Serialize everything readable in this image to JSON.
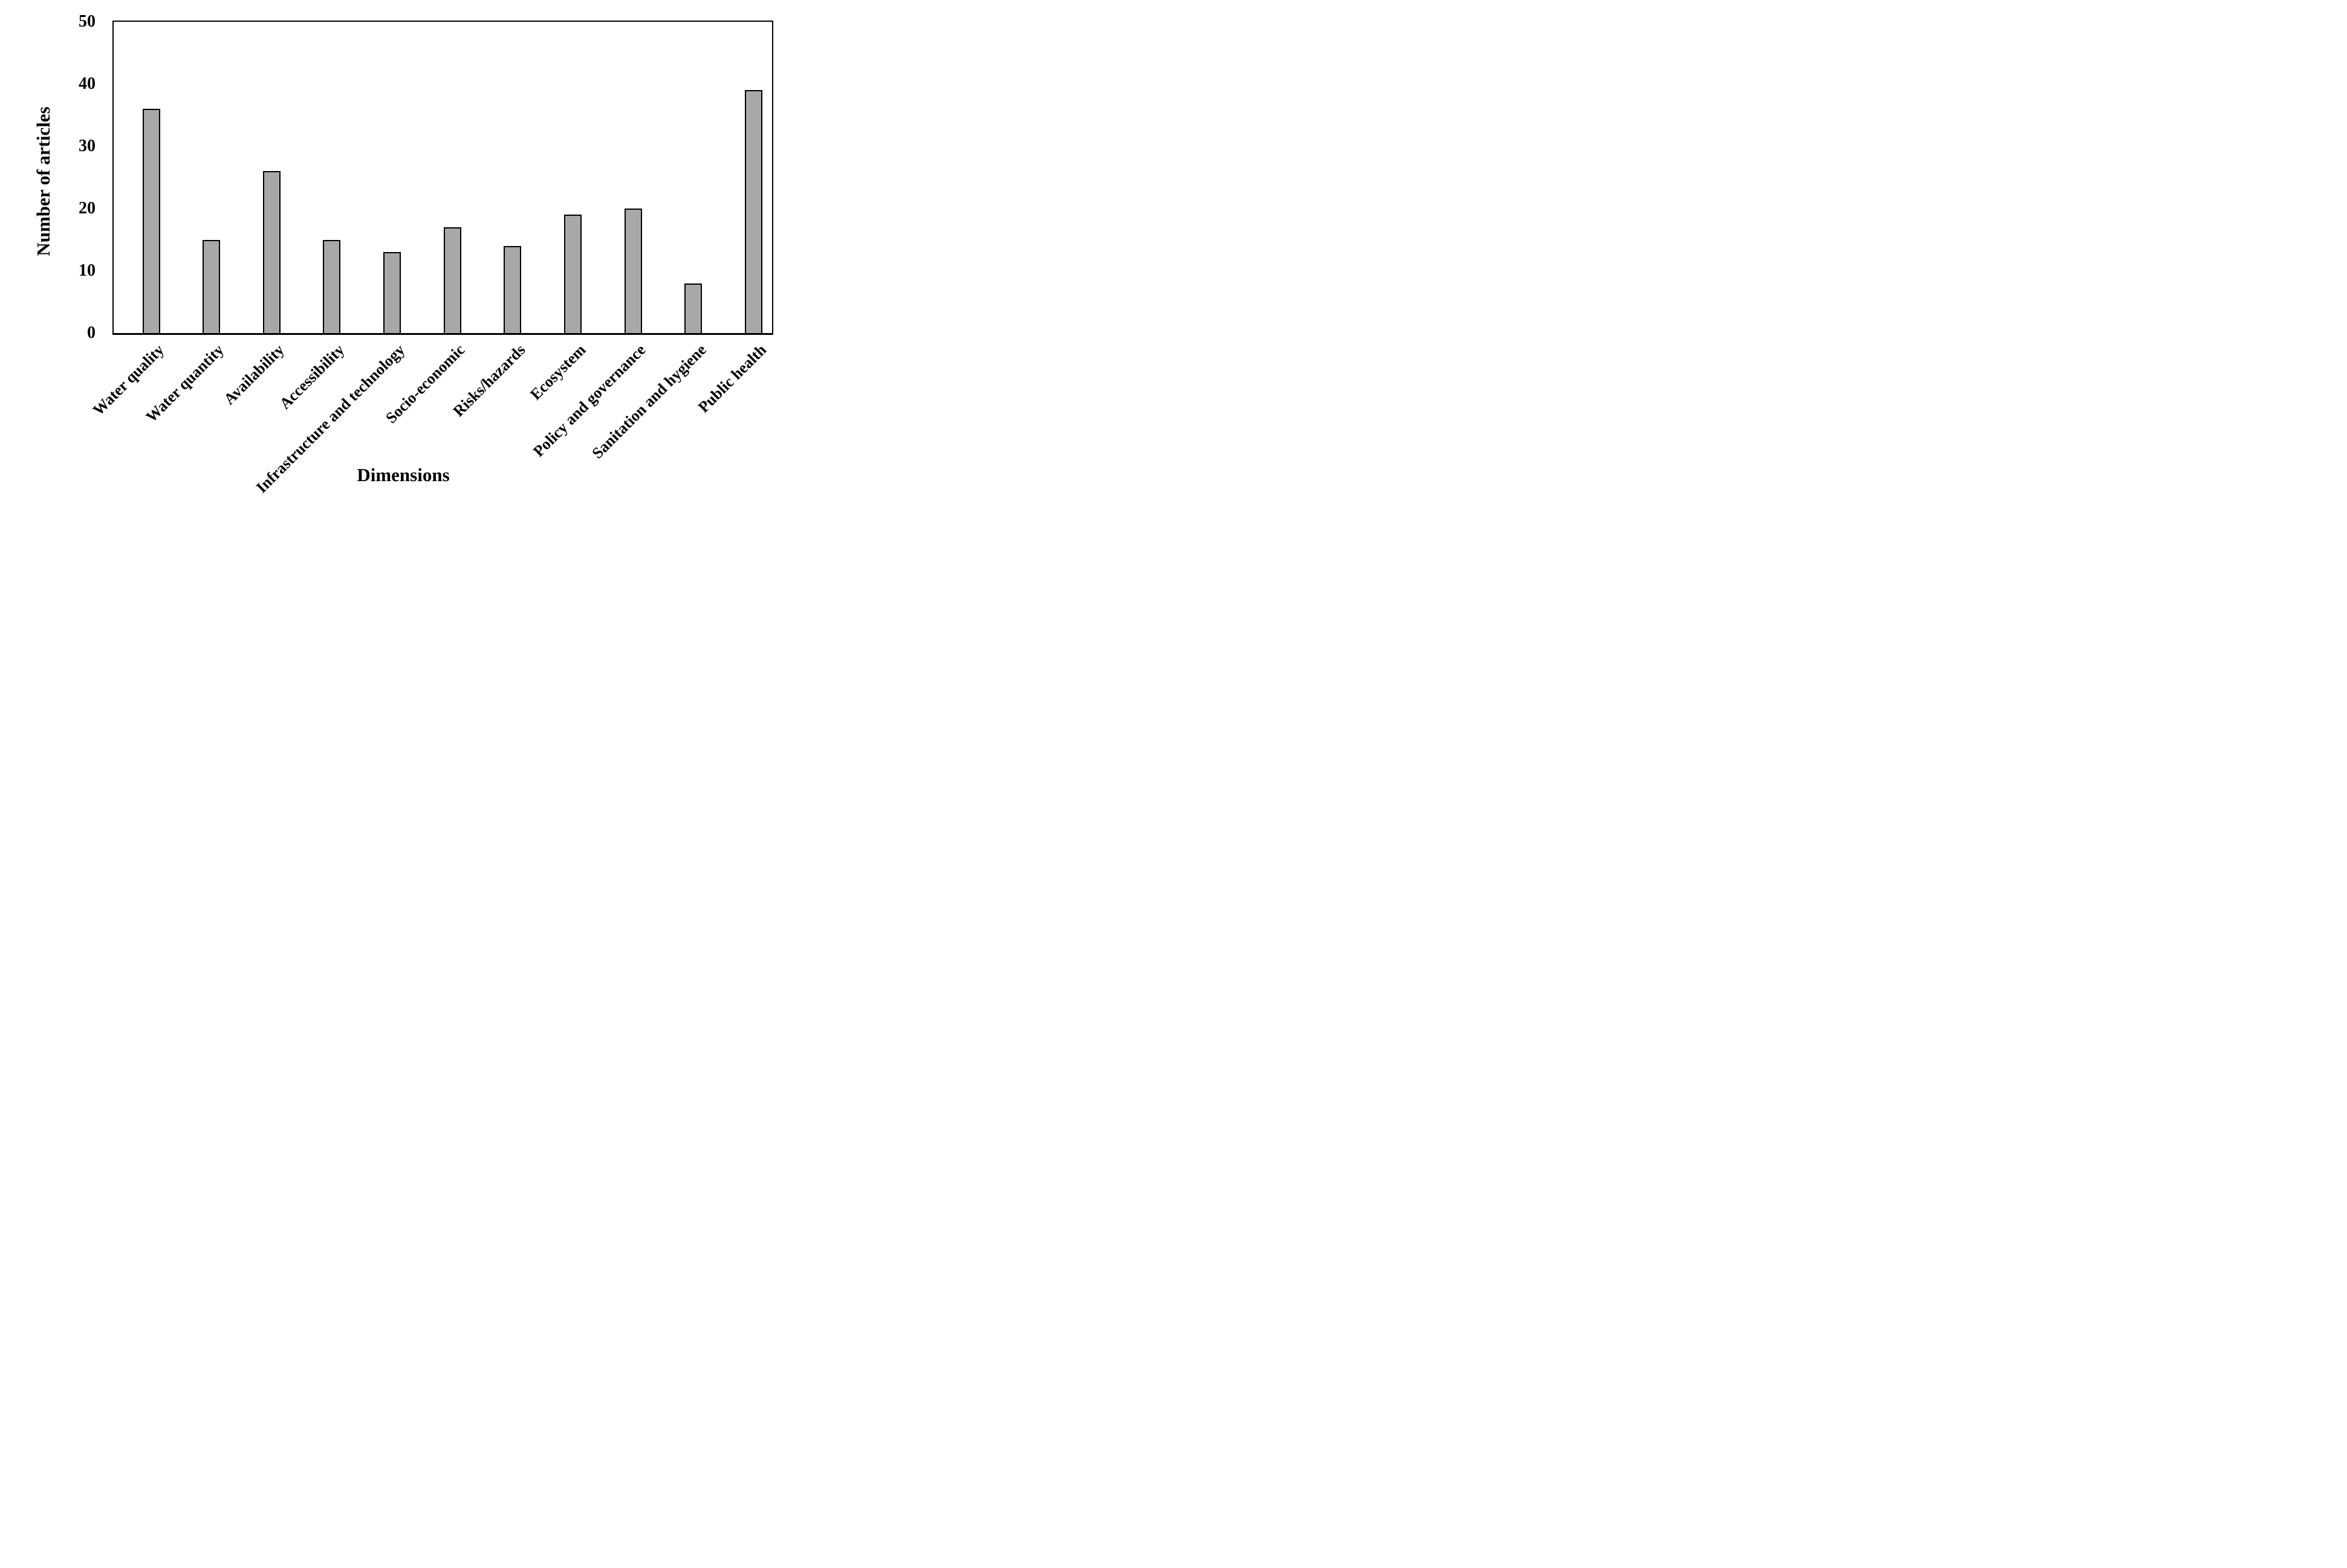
{
  "chart_data": {
    "type": "bar",
    "title": "",
    "xlabel": "Dimensions",
    "ylabel": "Number of articles",
    "categories": [
      "Water quality",
      "Water quantity",
      "Availability",
      "Accessibility",
      "Infrastructure and technology",
      "Socio-economic",
      "Risks/hazards",
      "Ecosystem",
      "Policy and governance",
      "Sanitation and hygiene",
      "Public health"
    ],
    "values": [
      36,
      15,
      26,
      15,
      13,
      17,
      14,
      19,
      20,
      8,
      39
    ],
    "ylim": [
      0,
      50
    ],
    "yticks": [
      0,
      10,
      20,
      30,
      40,
      50
    ],
    "grid": false,
    "legend": "none",
    "x_label_rotation_deg": -45,
    "bar_fill_color": "#a8a8a8",
    "bar_border_color": "#000000",
    "axis_color": "#000000",
    "text_color": "#000000",
    "background_color": "#ffffff"
  }
}
